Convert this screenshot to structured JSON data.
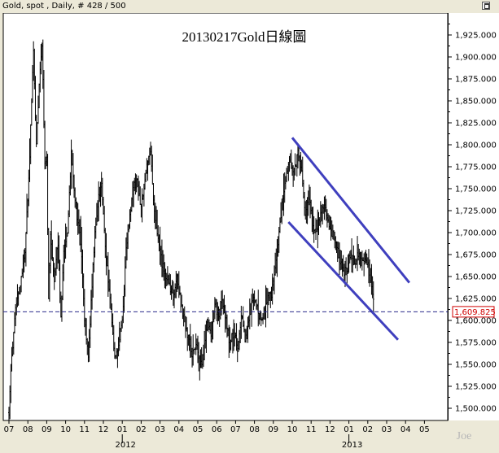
{
  "header": {
    "text": "Gold, spot , Daily, # 428 / 500"
  },
  "watermark": "Joe",
  "chart_data": {
    "type": "candlestick",
    "title": "20130217Gold日線圖",
    "ylim": [
      1490,
      1940
    ],
    "y_ticks": [
      {
        "value": 1500,
        "label": "1,500.000"
      },
      {
        "value": 1525,
        "label": "1,525.000"
      },
      {
        "value": 1550,
        "label": "1,550.000"
      },
      {
        "value": 1575,
        "label": "1,575.000"
      },
      {
        "value": 1600,
        "label": "1,600.000"
      },
      {
        "value": 1625,
        "label": "1,625.000"
      },
      {
        "value": 1650,
        "label": "1,650.000"
      },
      {
        "value": 1675,
        "label": "1,675.000"
      },
      {
        "value": 1700,
        "label": "1,700.000"
      },
      {
        "value": 1725,
        "label": "1,725.000"
      },
      {
        "value": 1750,
        "label": "1,750.000"
      },
      {
        "value": 1775,
        "label": "1,775.000"
      },
      {
        "value": 1800,
        "label": "1,800.000"
      },
      {
        "value": 1825,
        "label": "1,825.000"
      },
      {
        "value": 1850,
        "label": "1,850.000"
      },
      {
        "value": 1875,
        "label": "1,875.000"
      },
      {
        "value": 1900,
        "label": "1,900.000"
      },
      {
        "value": 1925,
        "label": "1,925.000"
      }
    ],
    "x_months": [
      "07",
      "08",
      "09",
      "10",
      "11",
      "12",
      "01",
      "02",
      "03",
      "04",
      "05",
      "06",
      "07",
      "08",
      "09",
      "10",
      "11",
      "12",
      "01",
      "02",
      "03",
      "04",
      "05"
    ],
    "x_years": [
      {
        "label": "2012",
        "month_index": 6
      },
      {
        "label": "2013",
        "month_index": 18
      }
    ],
    "current_price": {
      "value": 1609.825,
      "label": "1,609.825"
    },
    "price_path": [
      [
        0,
        1495
      ],
      [
        0.15,
        1560
      ],
      [
        0.35,
        1610
      ],
      [
        0.6,
        1640
      ],
      [
        0.85,
        1680
      ],
      [
        1.05,
        1760
      ],
      [
        1.2,
        1850
      ],
      [
        1.3,
        1905
      ],
      [
        1.45,
        1800
      ],
      [
        1.6,
        1870
      ],
      [
        1.75,
        1915
      ],
      [
        1.9,
        1780
      ],
      [
        2.0,
        1790
      ],
      [
        2.1,
        1620
      ],
      [
        2.2,
        1700
      ],
      [
        2.4,
        1640
      ],
      [
        2.6,
        1690
      ],
      [
        2.75,
        1600
      ],
      [
        2.9,
        1680
      ],
      [
        3.1,
        1700
      ],
      [
        3.3,
        1790
      ],
      [
        3.45,
        1750
      ],
      [
        3.6,
        1720
      ],
      [
        3.8,
        1690
      ],
      [
        4.0,
        1600
      ],
      [
        4.2,
        1560
      ],
      [
        4.35,
        1620
      ],
      [
        4.55,
        1700
      ],
      [
        4.75,
        1740
      ],
      [
        4.9,
        1760
      ],
      [
        5.05,
        1700
      ],
      [
        5.2,
        1660
      ],
      [
        5.4,
        1610
      ],
      [
        5.6,
        1560
      ],
      [
        5.8,
        1570
      ],
      [
        6.0,
        1600
      ],
      [
        6.2,
        1680
      ],
      [
        6.4,
        1720
      ],
      [
        6.6,
        1750
      ],
      [
        6.8,
        1760
      ],
      [
        6.95,
        1730
      ],
      [
        7.1,
        1740
      ],
      [
        7.3,
        1780
      ],
      [
        7.5,
        1790
      ],
      [
        7.7,
        1720
      ],
      [
        7.9,
        1690
      ],
      [
        8.1,
        1665
      ],
      [
        8.3,
        1650
      ],
      [
        8.5,
        1640
      ],
      [
        8.7,
        1625
      ],
      [
        8.9,
        1650
      ],
      [
        9.1,
        1620
      ],
      [
        9.3,
        1600
      ],
      [
        9.5,
        1580
      ],
      [
        9.7,
        1560
      ],
      [
        9.9,
        1575
      ],
      [
        10.1,
        1545
      ],
      [
        10.3,
        1560
      ],
      [
        10.5,
        1600
      ],
      [
        10.7,
        1585
      ],
      [
        10.9,
        1620
      ],
      [
        11.1,
        1600
      ],
      [
        11.3,
        1625
      ],
      [
        11.5,
        1600
      ],
      [
        11.7,
        1570
      ],
      [
        11.9,
        1590
      ],
      [
        12.1,
        1570
      ],
      [
        12.3,
        1605
      ],
      [
        12.5,
        1580
      ],
      [
        12.7,
        1600
      ],
      [
        12.9,
        1625
      ],
      [
        13.1,
        1620
      ],
      [
        13.3,
        1600
      ],
      [
        13.5,
        1610
      ],
      [
        13.7,
        1625
      ],
      [
        13.9,
        1630
      ],
      [
        14.1,
        1660
      ],
      [
        14.3,
        1700
      ],
      [
        14.5,
        1740
      ],
      [
        14.7,
        1770
      ],
      [
        14.9,
        1780
      ],
      [
        15.1,
        1770
      ],
      [
        15.3,
        1790
      ],
      [
        15.5,
        1770
      ],
      [
        15.7,
        1720
      ],
      [
        15.9,
        1740
      ],
      [
        16.1,
        1710
      ],
      [
        16.3,
        1700
      ],
      [
        16.5,
        1720
      ],
      [
        16.7,
        1730
      ],
      [
        16.9,
        1710
      ],
      [
        17.1,
        1700
      ],
      [
        17.3,
        1690
      ],
      [
        17.5,
        1670
      ],
      [
        17.7,
        1655
      ],
      [
        17.9,
        1660
      ],
      [
        18.1,
        1680
      ],
      [
        18.3,
        1665
      ],
      [
        18.5,
        1675
      ],
      [
        18.7,
        1665
      ],
      [
        18.9,
        1670
      ],
      [
        19.05,
        1660
      ],
      [
        19.2,
        1640
      ],
      [
        19.35,
        1610
      ]
    ],
    "trendlines": [
      {
        "name": "upper",
        "from": [
          15.0,
          1808
        ],
        "to": [
          21.2,
          1643
        ],
        "color": "#3f3fbe"
      },
      {
        "name": "lower",
        "from": [
          14.8,
          1712
        ],
        "to": [
          20.6,
          1578
        ],
        "color": "#3f3fbe"
      }
    ],
    "colors": {
      "candles": "#000000",
      "trendline": "#3f3fbe",
      "price_line": "#2b2b8a",
      "price_box": "#d00000"
    }
  }
}
